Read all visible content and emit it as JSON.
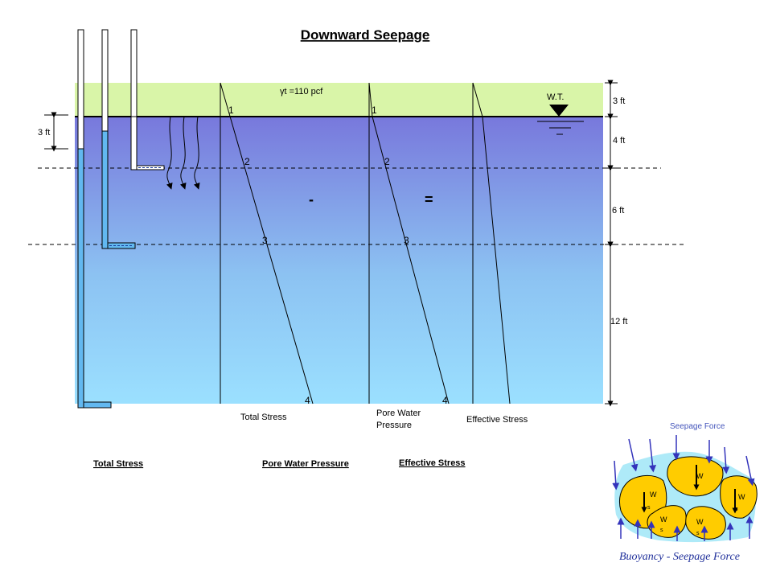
{
  "title": "Downward Seepage",
  "unit_weight_label": "γt =110 pcf",
  "water_table_label": "W.T.",
  "piezometer_rise_label": "3 ft",
  "depths": {
    "d1": "3 ft",
    "d2": "4 ft",
    "d3": "6 ft",
    "d4": "12 ft"
  },
  "point_labels": {
    "ts": [
      "1",
      "2",
      "3",
      "4"
    ],
    "pwp": [
      "1",
      "2",
      "3",
      "4"
    ]
  },
  "operators": {
    "minus": "-",
    "equals": "="
  },
  "diagram_labels": {
    "total_stress": "Total Stress",
    "pore_water_line1": "Pore Water",
    "pore_water_line2": "Pressure",
    "effective_stress": "Effective  Stress"
  },
  "bottom_headings": {
    "total_stress": "Total Stress",
    "pore_water_pressure": "Pore Water Pressure",
    "effective_stress": "Effective  Stress"
  },
  "inset": {
    "seepage_force_label": "Seepage Force",
    "caption": "Buoyancy - Seepage  Force",
    "weight_labels": [
      "W",
      "W",
      "W",
      "W",
      "W"
    ],
    "weight_subscripts": [
      "s",
      "s",
      "s",
      "s"
    ]
  },
  "colors": {
    "dry_soil": "#d9f5a8",
    "water_top": "#7878dc",
    "water_bottom": "#9be0ff",
    "grain": "#ffcc00",
    "arrow_blue": "#3333bb",
    "pore_water": "#aeeaf8",
    "tube_water": "#62b8f0"
  }
}
